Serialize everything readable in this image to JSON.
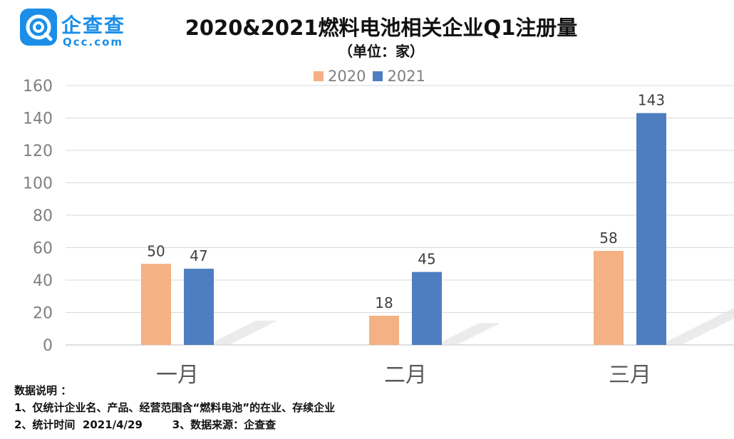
{
  "logo": {
    "name": "企查查",
    "domain": "Qcc.com"
  },
  "colors": {
    "series_2020": "#f4b183",
    "series_2021": "#4e7ec0",
    "brand": "#1a8ee8"
  },
  "chart_data": {
    "type": "bar",
    "title": "2020&2021燃料电池相关企业Q1注册量",
    "subtitle": "（单位：家）",
    "categories": [
      "一月",
      "二月",
      "三月"
    ],
    "series": [
      {
        "name": "2020",
        "values": [
          50,
          18,
          58
        ]
      },
      {
        "name": "2021",
        "values": [
          47,
          45,
          143
        ]
      }
    ],
    "ylim": [
      0,
      160
    ],
    "yticks": [
      0,
      20,
      40,
      60,
      80,
      100,
      120,
      140,
      160
    ],
    "grid": true,
    "legend": "top-center",
    "data_labels": true
  },
  "notes": {
    "heading": "数据说明 ：",
    "line1": "1、仅统计企业名、产品、经营范围含“燃料电池”的在业、存续企业",
    "line2a": "2、统计时间  2021/4/29",
    "line2b": "3、数据来源：企查查"
  }
}
